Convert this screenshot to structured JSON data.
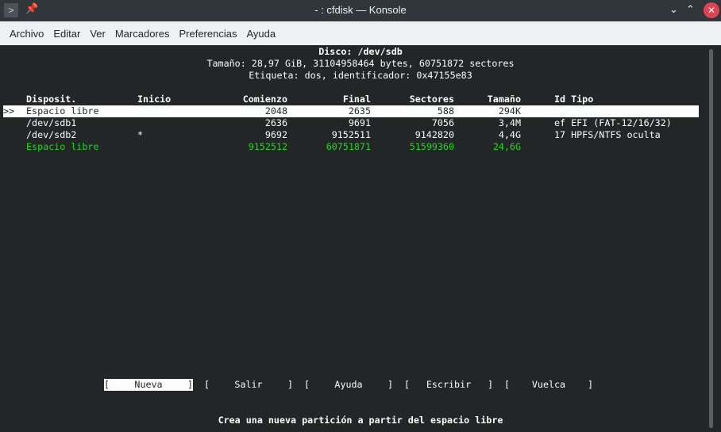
{
  "window": {
    "title": "- : cfdisk — Konsole"
  },
  "menu": [
    "Archivo",
    "Editar",
    "Ver",
    "Marcadores",
    "Preferencias",
    "Ayuda"
  ],
  "disk": {
    "header": "Disco: /dev/sdb",
    "size": "Tamaño: 28,97 GiB, 31104958464 bytes, 60751872 sectores",
    "label": "Etiqueta: dos, identificador: 0x47155e83"
  },
  "table": {
    "headers": [
      "Disposit.",
      "Inicio",
      "Comienzo",
      "Final",
      "Sectores",
      "Tamaño",
      "Id Tipo"
    ],
    "cursor": ">>",
    "rows": [
      {
        "device": "Espacio libre",
        "boot": "",
        "start": "2048",
        "end": "2635",
        "sectors": "588",
        "size": "294K",
        "type": ""
      },
      {
        "device": "/dev/sdb1",
        "boot": "",
        "start": "2636",
        "end": "9691",
        "sectors": "7056",
        "size": "3,4M",
        "type": "ef EFI (FAT-12/16/32)"
      },
      {
        "device": "/dev/sdb2",
        "boot": "*",
        "start": "9692",
        "end": "9152511",
        "sectors": "9142820",
        "size": "4,4G",
        "type": "17 HPFS/NTFS oculta"
      },
      {
        "device": "Espacio libre",
        "boot": "",
        "start": "9152512",
        "end": "60751871",
        "sectors": "51599360",
        "size": "24,6G",
        "type": ""
      }
    ]
  },
  "actions": [
    "Nueva",
    "Salir",
    "Ayuda",
    "Escribir",
    "Vuelca"
  ],
  "selected_action": "Nueva",
  "hint": "Crea una nueva partición a partir del espacio libre",
  "colors": {
    "background": "#232627",
    "free_space": "#1cdc1c",
    "highlight": "#fcfcfc"
  }
}
